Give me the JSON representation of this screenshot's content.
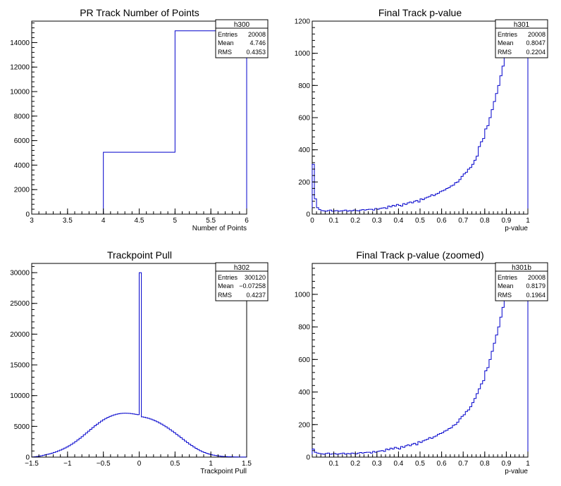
{
  "chart_data": [
    {
      "type": "bar",
      "title": "PR Track Number of Points",
      "xlabel": "Number of Points",
      "ylabel": "",
      "xlim": [
        3,
        6
      ],
      "ylim": [
        0,
        15750
      ],
      "x_ticks": [
        "3",
        "3.5",
        "4",
        "4.5",
        "5",
        "5.5",
        "6"
      ],
      "y_ticks": [
        "0",
        "2000",
        "4000",
        "6000",
        "8000",
        "10000",
        "12000",
        "14000"
      ],
      "bin_edges": [
        4,
        5,
        6
      ],
      "values": [
        5050,
        14958
      ],
      "stats": {
        "name": "h300",
        "entries": "20008",
        "mean": "4.746",
        "rms": "0.4353"
      },
      "color": "#0000cc"
    },
    {
      "type": "bar",
      "title": "Final Track p-value",
      "xlabel": "p-value",
      "ylabel": "",
      "xlim": [
        0,
        1
      ],
      "ylim": [
        0,
        1200
      ],
      "x_ticks": [
        "0",
        "0.1",
        "0.2",
        "0.3",
        "0.4",
        "0.5",
        "0.6",
        "0.7",
        "0.8",
        "0.9",
        "1"
      ],
      "y_ticks": [
        "0",
        "200",
        "400",
        "600",
        "800",
        "1000",
        "1200"
      ],
      "bin_edges_range": [
        0,
        1
      ],
      "values": [
        310,
        95,
        40,
        28,
        22,
        20,
        18,
        22,
        25,
        18,
        20,
        22,
        18,
        20,
        22,
        25,
        18,
        22,
        20,
        25,
        22,
        20,
        25,
        28,
        25,
        28,
        30,
        30,
        25,
        35,
        30,
        35,
        38,
        40,
        35,
        50,
        45,
        55,
        50,
        60,
        55,
        50,
        65,
        60,
        70,
        75,
        70,
        80,
        85,
        75,
        95,
        90,
        100,
        105,
        110,
        120,
        115,
        125,
        130,
        140,
        145,
        150,
        160,
        165,
        175,
        180,
        195,
        200,
        215,
        235,
        250,
        260,
        280,
        290,
        310,
        335,
        360,
        420,
        450,
        470,
        530,
        550,
        600,
        650,
        700,
        750,
        800,
        860,
        920,
        1000,
        1060,
        1200,
        1200,
        1200,
        1200,
        1200,
        1200,
        1200,
        1200,
        1200
      ],
      "stats": {
        "name": "h301",
        "entries": "20008",
        "mean": "0.8047",
        "rms": "0.2204"
      },
      "color": "#0000cc"
    },
    {
      "type": "bar",
      "title": "Trackpoint Pull",
      "xlabel": "Trackpoint Pull",
      "ylabel": "",
      "xlim": [
        -1.5,
        1.5
      ],
      "ylim": [
        0,
        31500
      ],
      "x_ticks": [
        "−1.5",
        "−1",
        "−0.5",
        "0",
        "0.5",
        "1",
        "1.5"
      ],
      "y_ticks": [
        "0",
        "5000",
        "10000",
        "15000",
        "20000",
        "25000",
        "30000"
      ],
      "bin_edges_range": [
        -1.5,
        1.5
      ],
      "values": [
        35,
        60,
        100,
        150,
        220,
        300,
        380,
        460,
        550,
        650,
        760,
        880,
        1010,
        1150,
        1300,
        1470,
        1650,
        1850,
        2060,
        2290,
        2530,
        2790,
        3060,
        3340,
        3630,
        3920,
        4220,
        4520,
        4810,
        5090,
        5360,
        5620,
        5860,
        6080,
        6280,
        6460,
        6620,
        6760,
        6880,
        6970,
        7050,
        7100,
        7130,
        7140,
        7130,
        7110,
        7070,
        7020,
        6960,
        6900,
        30000,
        6550,
        6480,
        6400,
        6300,
        6180,
        6050,
        5900,
        5740,
        5560,
        5370,
        5160,
        4940,
        4710,
        4470,
        4220,
        3960,
        3700,
        3430,
        3160,
        2890,
        2620,
        2360,
        2110,
        1870,
        1640,
        1430,
        1230,
        1050,
        880,
        740,
        610,
        500,
        410,
        330,
        270,
        215,
        170,
        135,
        105,
        82,
        64,
        50,
        40,
        32,
        26,
        20,
        16,
        12,
        10
      ],
      "stats": {
        "name": "h302",
        "entries": "300120",
        "mean": "−0.07258",
        "rms": "0.4237"
      },
      "color": "#0000cc"
    },
    {
      "type": "bar",
      "title": "Final Track p-value (zoomed)",
      "xlabel": "p-value",
      "ylabel": "",
      "xlim": [
        0,
        1
      ],
      "ylim": [
        0,
        1190
      ],
      "x_ticks": [
        "0.1",
        "0.2",
        "0.3",
        "0.4",
        "0.5",
        "0.6",
        "0.7",
        "0.8",
        "0.9",
        "1"
      ],
      "y_ticks": [
        "0",
        "200",
        "400",
        "600",
        "800",
        "1000"
      ],
      "bin_edges_range": [
        0,
        1
      ],
      "values": [
        50,
        30,
        25,
        22,
        20,
        18,
        22,
        25,
        18,
        20,
        22,
        18,
        20,
        22,
        25,
        18,
        22,
        20,
        25,
        22,
        20,
        25,
        28,
        25,
        28,
        30,
        30,
        25,
        35,
        30,
        35,
        38,
        40,
        35,
        50,
        45,
        55,
        50,
        60,
        55,
        50,
        65,
        60,
        70,
        75,
        70,
        80,
        85,
        75,
        95,
        90,
        100,
        105,
        110,
        120,
        115,
        125,
        130,
        140,
        145,
        150,
        160,
        165,
        175,
        180,
        195,
        200,
        215,
        235,
        250,
        260,
        280,
        290,
        310,
        335,
        360,
        390,
        420,
        450,
        470,
        530,
        550,
        600,
        650,
        700,
        750,
        800,
        860,
        920,
        1000,
        1060,
        1190,
        1190,
        1190,
        1190,
        1190,
        1190,
        1190,
        1190,
        1190
      ],
      "stats": {
        "name": "h301b",
        "entries": "20008",
        "mean": "0.8179",
        "rms": "0.1964"
      },
      "color": "#0000cc"
    }
  ]
}
